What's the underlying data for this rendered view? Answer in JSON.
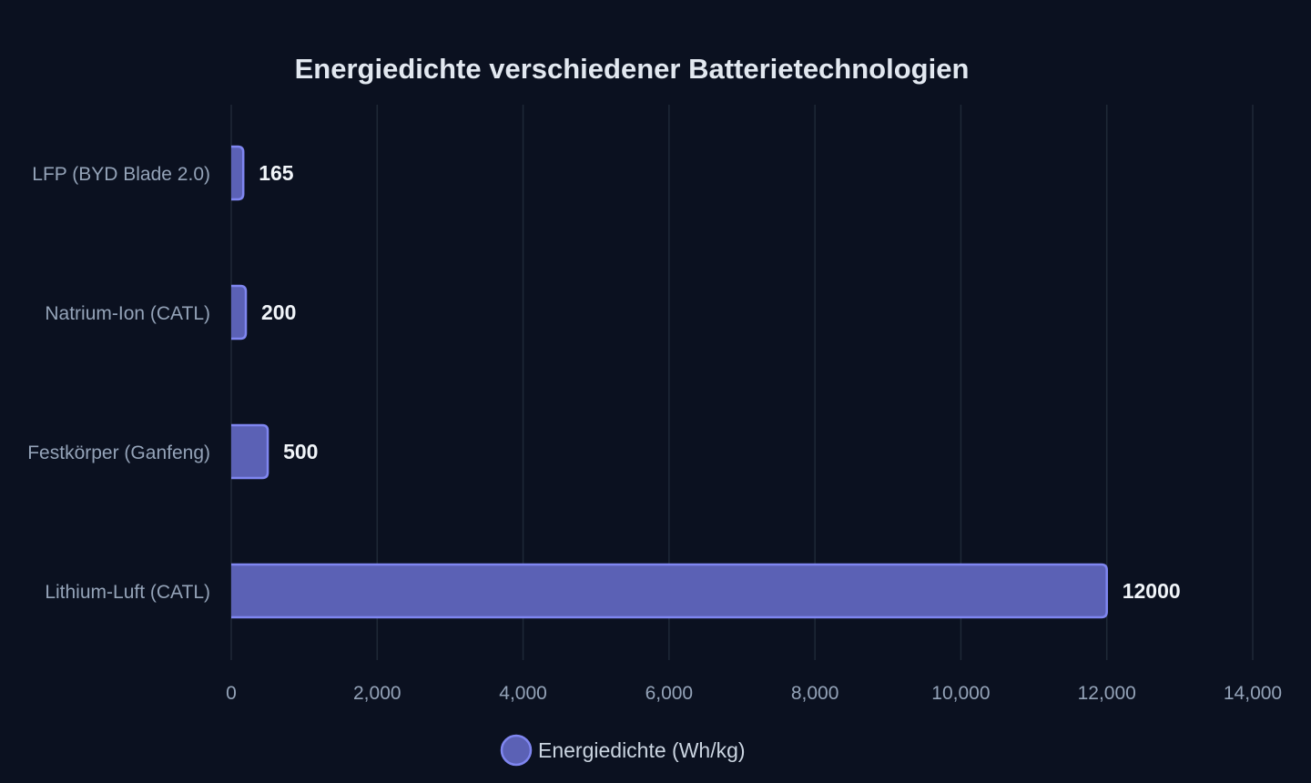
{
  "chart_data": {
    "type": "bar",
    "orientation": "horizontal",
    "title": "Energiedichte verschiedener Batterietechnologien",
    "categories": [
      "LFP (BYD Blade 2.0)",
      "Natrium-Ion (CATL)",
      "Festkörper (Ganfeng)",
      "Lithium-Luft (CATL)"
    ],
    "series": [
      {
        "name": "Energiedichte (Wh/kg)",
        "values": [
          165,
          200,
          500,
          12000
        ]
      }
    ],
    "data_labels": [
      "165",
      "200",
      "500",
      "12000"
    ],
    "xlim": [
      0,
      14000
    ],
    "x_ticks": [
      0,
      2000,
      4000,
      6000,
      8000,
      10000,
      12000,
      14000
    ],
    "x_tick_labels": [
      "0",
      "2,000",
      "4,000",
      "6,000",
      "8,000",
      "10,000",
      "12,000",
      "14,000"
    ],
    "grid": true,
    "legend_position": "bottom",
    "colors": {
      "background": "#0b1120",
      "bar_fill": "#5b61b5",
      "bar_stroke": "#7f86f0",
      "grid": "#1f2937"
    }
  }
}
